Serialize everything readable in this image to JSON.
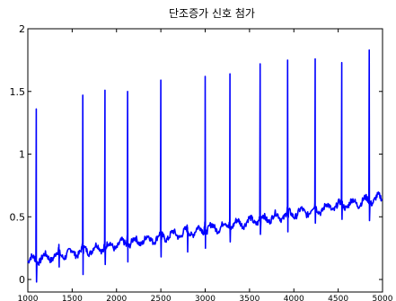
{
  "chart_data": {
    "type": "line",
    "title": "단조증가 신호 첨가",
    "xlabel": "",
    "ylabel": "",
    "xlim": [
      1000,
      5000
    ],
    "ylim": [
      -0.1,
      2
    ],
    "xticks": [
      1000,
      1500,
      2000,
      2500,
      3000,
      3500,
      4000,
      4500,
      5000
    ],
    "yticks": [
      0,
      0.5,
      1,
      1.5,
      2
    ],
    "yticklabels": [
      "0",
      "0.5",
      "1",
      "1.5",
      "2"
    ],
    "grid": false,
    "series": [
      {
        "color": "#0000ff",
        "baseline": {
          "x": [
            1000,
            5000
          ],
          "y": [
            0.15,
            0.65
          ]
        },
        "beats": [
          {
            "x": 1095,
            "peak": 1.36,
            "trough": -0.02
          },
          {
            "x": 1350,
            "peak": 0.28,
            "trough": 0.1
          },
          {
            "x": 1620,
            "peak": 1.47,
            "trough": 0.04
          },
          {
            "x": 1870,
            "peak": 1.51,
            "trough": 0.12
          },
          {
            "x": 2125,
            "peak": 1.5,
            "trough": 0.14
          },
          {
            "x": 2500,
            "peak": 1.59,
            "trough": 0.18
          },
          {
            "x": 2800,
            "peak": 0.38,
            "trough": 0.22
          },
          {
            "x": 3000,
            "peak": 1.62,
            "trough": 0.25
          },
          {
            "x": 3280,
            "peak": 1.64,
            "trough": 0.3
          },
          {
            "x": 3620,
            "peak": 1.72,
            "trough": 0.36
          },
          {
            "x": 3930,
            "peak": 1.75,
            "trough": 0.38
          },
          {
            "x": 4240,
            "peak": 1.76,
            "trough": 0.45
          },
          {
            "x": 4540,
            "peak": 1.73,
            "trough": 0.48
          },
          {
            "x": 4850,
            "peak": 1.83,
            "trough": 0.47
          }
        ]
      }
    ]
  }
}
